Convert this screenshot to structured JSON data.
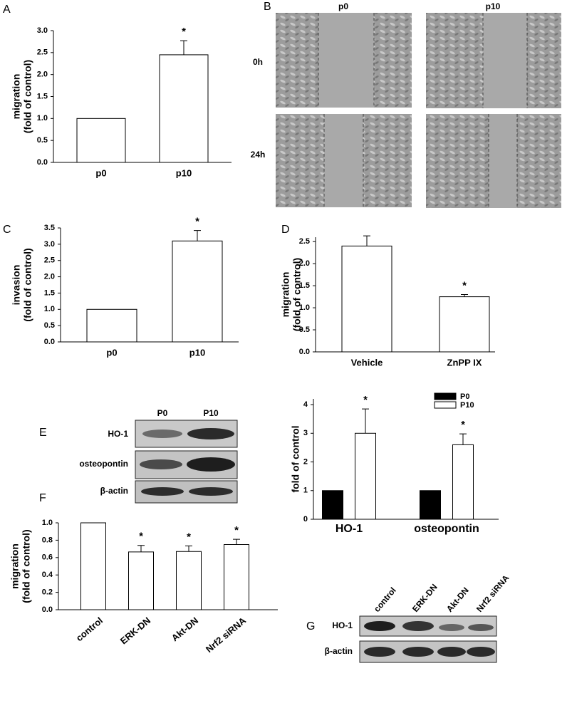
{
  "chart_data": [
    {
      "type": "bar",
      "ylabel": [
        "migration",
        "(fold of control)"
      ],
      "categories": [
        "p0",
        "p10"
      ],
      "values": [
        1.0,
        2.45
      ],
      "errors": [
        null,
        0.32
      ],
      "annotations": [
        null,
        "*"
      ],
      "color": "#ffffff",
      "ylim": [
        0,
        3.0
      ],
      "yticks": [
        {
          "value": 0,
          "label": "0.0"
        },
        {
          "value": 0.5,
          "label": "0.5"
        },
        {
          "value": 1,
          "label": "1.0"
        },
        {
          "value": 1.5,
          "label": "1.5"
        },
        {
          "value": 2,
          "label": "2.0"
        },
        {
          "value": 2.5,
          "label": "2.5"
        },
        {
          "value": 3,
          "label": "3.0"
        }
      ]
    },
    {
      "type": "bar",
      "ylabel": [
        "invasion",
        "(fold of control)"
      ],
      "categories": [
        "p0",
        "p10"
      ],
      "values": [
        1.0,
        3.1
      ],
      "errors": [
        null,
        0.32
      ],
      "annotations": [
        null,
        "*"
      ],
      "color": "#ffffff",
      "ylim": [
        0,
        3.5
      ],
      "yticks": [
        {
          "value": 0,
          "label": "0.0"
        },
        {
          "value": 0.5,
          "label": "0.5"
        },
        {
          "value": 1,
          "label": "1.0"
        },
        {
          "value": 1.5,
          "label": "1.5"
        },
        {
          "value": 2,
          "label": "2.0"
        },
        {
          "value": 2.5,
          "label": "2.5"
        },
        {
          "value": 3,
          "label": "3.0"
        },
        {
          "value": 3.5,
          "label": "3.5"
        }
      ]
    },
    {
      "type": "bar",
      "ylabel": [
        "migration",
        "(fold of control)"
      ],
      "categories": [
        "Vehicle",
        "ZnPP IX"
      ],
      "values": [
        2.4,
        1.25
      ],
      "errors": [
        0.23,
        0.05
      ],
      "annotations": [
        null,
        "*"
      ],
      "color": "#ffffff",
      "ylim": [
        0,
        2.6
      ],
      "yticks": [
        {
          "value": 0,
          "label": "0.0"
        },
        {
          "value": 0.5,
          "label": "0.5"
        },
        {
          "value": 1,
          "label": "1.0"
        },
        {
          "value": 1.5,
          "label": "1.5"
        },
        {
          "value": 2,
          "label": "2.0"
        },
        {
          "value": 2.5,
          "label": "2.5"
        }
      ]
    },
    {
      "type": "grouped-bar",
      "ylabel": [
        "fold of control"
      ],
      "categories": [
        "HO-1",
        "osteopontin"
      ],
      "series": [
        {
          "name": "P0",
          "color": "#000000",
          "values": [
            1,
            1
          ],
          "errors": [
            null,
            null
          ],
          "annotations": [
            null,
            null
          ]
        },
        {
          "name": "P10",
          "color": "#ffffff",
          "values": [
            3.0,
            2.6
          ],
          "errors": [
            0.85,
            0.38
          ],
          "annotations": [
            "*",
            "*"
          ]
        }
      ],
      "ylim": [
        0,
        4.2
      ],
      "yticks": [
        0,
        1,
        2,
        3,
        4
      ],
      "legend": "top-right"
    },
    {
      "type": "bar",
      "ylabel": [
        "migration",
        "(fold of control)"
      ],
      "categories": [
        "control",
        "ERK-DN",
        "Akt-DN",
        "Nrf2 siRNA"
      ],
      "values": [
        1.0,
        0.665,
        0.67,
        0.75
      ],
      "errors": [
        null,
        0.075,
        0.065,
        0.06
      ],
      "annotations": [
        null,
        "*",
        "*",
        "*"
      ],
      "color": "#ffffff",
      "ylim": [
        0,
        1.0
      ],
      "yticks": [
        {
          "value": 0,
          "label": "0.0"
        },
        {
          "value": 0.2,
          "label": "0.2"
        },
        {
          "value": 0.4,
          "label": "0.4"
        },
        {
          "value": 0.6,
          "label": "0.6"
        },
        {
          "value": 0.8,
          "label": "0.8"
        },
        {
          "value": 1,
          "label": "1.0"
        }
      ]
    }
  ],
  "panel_labels": [
    "A",
    "B",
    "C",
    "D",
    "E",
    "F",
    "G"
  ],
  "wound_images": {
    "columns": [
      "p0",
      "p10"
    ],
    "rows": [
      "0h",
      "24h"
    ]
  },
  "blot_e": {
    "columns": [
      "P0",
      "P10"
    ],
    "rows": [
      "HO-1",
      "osteopontin",
      "β-actin"
    ]
  },
  "blot_g": {
    "columns": [
      "control",
      "ERK-DN",
      "Akt-DN",
      "Nrf2 siRNA"
    ],
    "rows": [
      "HO-1",
      "β-actin"
    ]
  }
}
